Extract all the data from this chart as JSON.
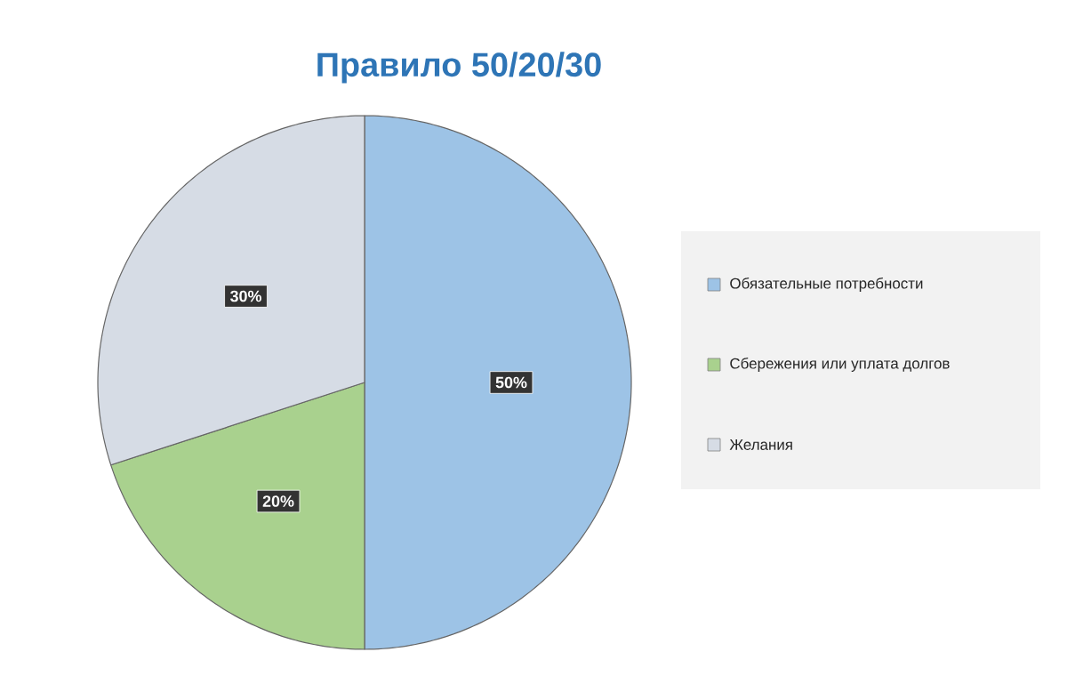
{
  "chart_data": {
    "type": "pie",
    "title": "Правило 50/20/30",
    "categories": [
      "Обязательные потребности",
      "Сбережения или уплата долгов",
      "Желания"
    ],
    "values": [
      50,
      20,
      30
    ],
    "colors": [
      "#9dc3e6",
      "#a9d18e",
      "#d6dce5"
    ],
    "value_labels": [
      "50%",
      "20%",
      "30%"
    ],
    "legend": "right"
  }
}
